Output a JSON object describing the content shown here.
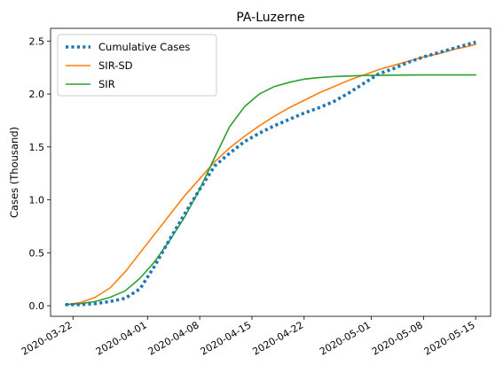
{
  "chart_data": {
    "type": "line",
    "title": "PA-Luzerne",
    "xlabel": "",
    "ylabel": "Cases (Thousand)",
    "xlim": [
      "2020-03-19",
      "2020-05-17"
    ],
    "ylim": [
      -0.1,
      2.62
    ],
    "x_ticks": [
      "2020-03-22",
      "2020-04-01",
      "2020-04-08",
      "2020-04-15",
      "2020-04-22",
      "2020-05-01",
      "2020-05-08",
      "2020-05-15"
    ],
    "y_ticks": [
      0.0,
      0.5,
      1.0,
      1.5,
      2.0,
      2.5
    ],
    "y_tick_labels": [
      "0.0",
      "0.5",
      "1.0",
      "1.5",
      "2.0",
      "2.5"
    ],
    "grid": false,
    "legend_position": "top-left",
    "series": [
      {
        "name": "Cumulative Cases",
        "color": "#1f77b4",
        "style": "dotted",
        "x": [
          "2020-03-21",
          "2020-03-23",
          "2020-03-25",
          "2020-03-27",
          "2020-03-29",
          "2020-03-31",
          "2020-04-02",
          "2020-04-04",
          "2020-04-06",
          "2020-04-08",
          "2020-04-10",
          "2020-04-12",
          "2020-04-14",
          "2020-04-16",
          "2020-04-18",
          "2020-04-20",
          "2020-04-22",
          "2020-04-24",
          "2020-04-26",
          "2020-04-28",
          "2020-04-30",
          "2020-05-02",
          "2020-05-04",
          "2020-05-06",
          "2020-05-08",
          "2020-05-10",
          "2020-05-12",
          "2020-05-14",
          "2020-05-15"
        ],
        "values": [
          0.01,
          0.01,
          0.02,
          0.04,
          0.07,
          0.16,
          0.38,
          0.63,
          0.87,
          1.1,
          1.32,
          1.44,
          1.55,
          1.63,
          1.7,
          1.76,
          1.82,
          1.87,
          1.93,
          2.01,
          2.1,
          2.19,
          2.24,
          2.3,
          2.35,
          2.39,
          2.43,
          2.47,
          2.49
        ]
      },
      {
        "name": "SIR-SD",
        "color": "#ff7f0e",
        "style": "solid",
        "x": [
          "2020-03-21",
          "2020-03-23",
          "2020-03-25",
          "2020-03-27",
          "2020-03-29",
          "2020-03-31",
          "2020-04-02",
          "2020-04-04",
          "2020-04-06",
          "2020-04-08",
          "2020-04-10",
          "2020-04-12",
          "2020-04-14",
          "2020-04-16",
          "2020-04-18",
          "2020-04-20",
          "2020-04-22",
          "2020-04-24",
          "2020-04-26",
          "2020-04-28",
          "2020-04-30",
          "2020-05-02",
          "2020-05-04",
          "2020-05-06",
          "2020-05-08",
          "2020-05-10",
          "2020-05-12",
          "2020-05-14",
          "2020-05-15"
        ],
        "values": [
          0.01,
          0.03,
          0.08,
          0.17,
          0.32,
          0.5,
          0.68,
          0.86,
          1.04,
          1.2,
          1.36,
          1.49,
          1.6,
          1.7,
          1.79,
          1.87,
          1.94,
          2.01,
          2.07,
          2.13,
          2.18,
          2.23,
          2.27,
          2.31,
          2.35,
          2.38,
          2.42,
          2.45,
          2.47
        ]
      },
      {
        "name": "SIR",
        "color": "#2ca02c",
        "style": "solid",
        "x": [
          "2020-03-21",
          "2020-03-23",
          "2020-03-25",
          "2020-03-27",
          "2020-03-29",
          "2020-03-31",
          "2020-04-02",
          "2020-04-04",
          "2020-04-06",
          "2020-04-08",
          "2020-04-10",
          "2020-04-12",
          "2020-04-14",
          "2020-04-16",
          "2020-04-18",
          "2020-04-20",
          "2020-04-22",
          "2020-04-24",
          "2020-04-26",
          "2020-04-28",
          "2020-04-30",
          "2020-05-02",
          "2020-05-04",
          "2020-05-06",
          "2020-05-08",
          "2020-05-10",
          "2020-05-12",
          "2020-05-14",
          "2020-05-15"
        ],
        "values": [
          0.01,
          0.02,
          0.04,
          0.08,
          0.14,
          0.26,
          0.42,
          0.62,
          0.84,
          1.1,
          1.4,
          1.69,
          1.88,
          2.0,
          2.07,
          2.11,
          2.14,
          2.155,
          2.165,
          2.17,
          2.175,
          2.177,
          2.178,
          2.179,
          2.18,
          2.18,
          2.18,
          2.18,
          2.18
        ]
      }
    ]
  }
}
